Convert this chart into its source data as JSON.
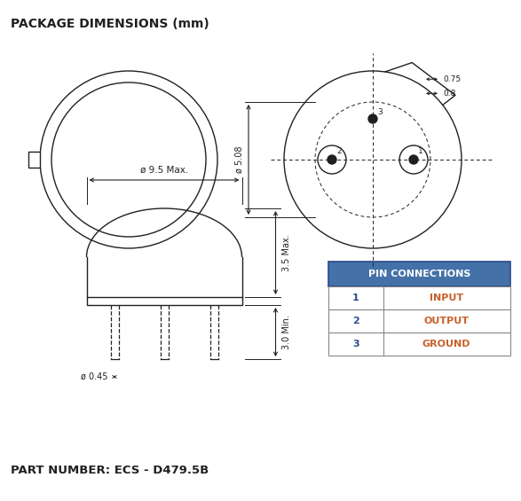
{
  "title": "PACKAGE DIMENSIONS (mm)",
  "part_number": "PART NUMBER: ECS - D479.5B",
  "bg_color": "#ffffff",
  "line_color": "#231f20",
  "table_header_bg": "#4472a8",
  "table_header_text": "#ffffff",
  "table_text_color": "#c8602a",
  "table_num_color": "#2a4a8a",
  "pin_connections": {
    "header": "PIN CONNECTIONS",
    "rows": [
      [
        "1",
        "INPUT"
      ],
      [
        "2",
        "OUTPUT"
      ],
      [
        "3",
        "GROUND"
      ]
    ]
  }
}
